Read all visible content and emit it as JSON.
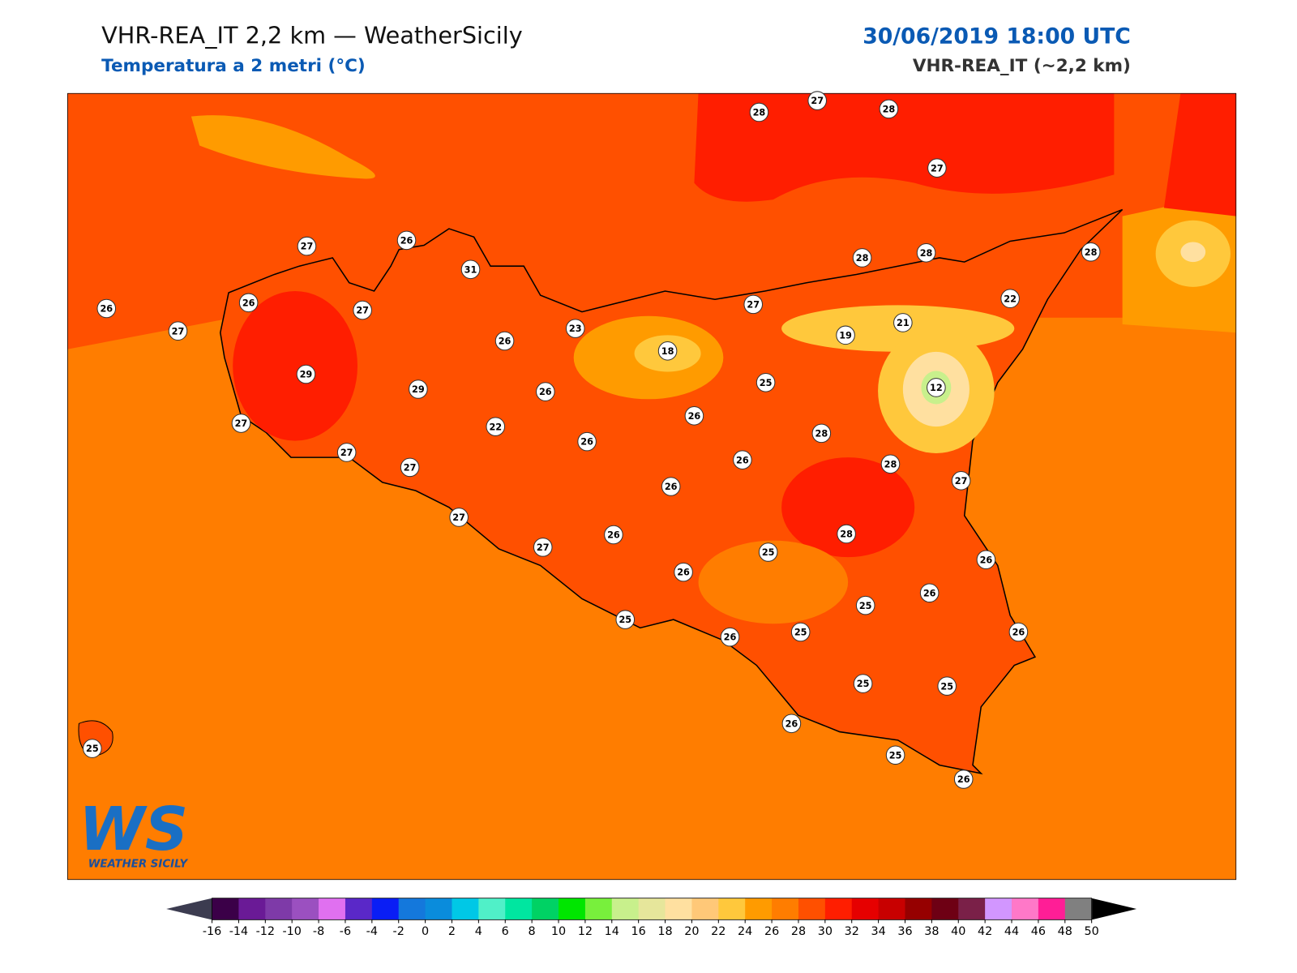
{
  "header": {
    "title": "VHR-REA_IT 2,2 km — WeatherSicily",
    "subtitle": "Temperatura a 2 metri (°C)",
    "datetime": "30/06/2019 18:00 UTC",
    "model": "VHR-REA_IT (~2,2 km)"
  },
  "stations": [
    27,
    26,
    31,
    26,
    26,
    27,
    27,
    26,
    23,
    18,
    27,
    28,
    28,
    28,
    22,
    21,
    19,
    29,
    29,
    26,
    25,
    12,
    26,
    27,
    22,
    26,
    28,
    27,
    27,
    26,
    28,
    27,
    26,
    27,
    28,
    26,
    27,
    25,
    26,
    26,
    26,
    25,
    25,
    25,
    26,
    26,
    25,
    25,
    26,
    25,
    26,
    25,
    28,
    27,
    28,
    27
  ],
  "colorbar": {
    "ticks": [
      -16,
      -14,
      -12,
      -10,
      -8,
      -6,
      -4,
      -2,
      0,
      2,
      4,
      6,
      8,
      10,
      12,
      14,
      16,
      18,
      20,
      22,
      24,
      26,
      28,
      30,
      32,
      34,
      36,
      38,
      40,
      42,
      44,
      46,
      48,
      50
    ],
    "colors": [
      "#3b0048",
      "#6a1a96",
      "#7e3aa8",
      "#9b50c0",
      "#e070f0",
      "#5a28c8",
      "#0a1ef5",
      "#1478dc",
      "#0a8cdc",
      "#00c8e6",
      "#50f0c8",
      "#00e6a0",
      "#00d264",
      "#00e600",
      "#78f03c",
      "#c8f08c",
      "#e6e69b",
      "#ffe0a0",
      "#ffc878",
      "#ffc83c",
      "#ff9b00",
      "#ff7d00",
      "#ff5000",
      "#ff1e00",
      "#e60000",
      "#c80000",
      "#960000",
      "#6e0014",
      "#7a2048",
      "#d296ff",
      "#ff78c8",
      "#ff1e96",
      "#808080",
      "#3c3c3c"
    ],
    "under_color": "#3c3c50",
    "over_color": "#000000"
  },
  "logo": {
    "mark": "WS",
    "name": "WEATHER SICILY"
  }
}
